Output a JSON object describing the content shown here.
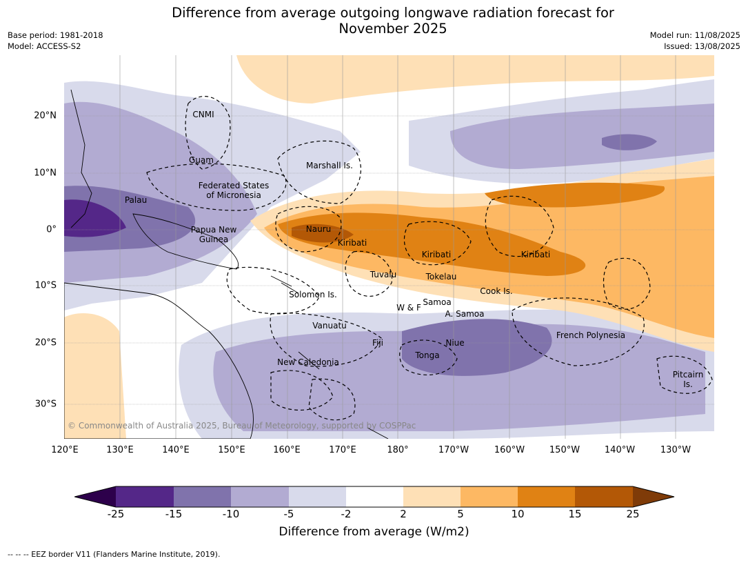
{
  "header": {
    "title_line1": "Difference from average outgoing longwave radiation forecast for",
    "title_line2": "November 2025",
    "base_period": "Base period: 1981-2018",
    "model": "Model: ACCESS-S2",
    "model_run": "Model run: 11/08/2025",
    "issued": "Issued: 13/08/2025"
  },
  "map": {
    "region_labels": {
      "cnmi": "CNMI",
      "guam": "Guam",
      "marshall": "Marshall Is.",
      "fsm1": "Federated States",
      "fsm2": "of Micronesia",
      "palau": "Palau",
      "png1": "Papua New",
      "png2": "Guinea",
      "nauru": "Nauru",
      "kiribati1": "Kiribati",
      "kiribati2": "Kiribati",
      "kiribati3": "Kiribati",
      "tuvalu": "Tuvalu",
      "tokelau": "Tokelau",
      "cook": "Cook Is.",
      "solomon": "Solomon Is.",
      "wf": "W & F",
      "samoa": "Samoa",
      "asamoa": "A. Samoa",
      "vanuatu": "Vanuatu",
      "fiji": "Fiji",
      "niue": "Niue",
      "tonga": "Tonga",
      "french_polynesia": "French Polynesia",
      "newcal": "New Caledonia",
      "pitcairn1": "Pitcairn",
      "pitcairn2": "Is."
    },
    "lat_ticks": [
      "20°N",
      "10°N",
      "0°",
      "10°S",
      "20°S",
      "30°S"
    ],
    "lon_ticks": [
      "120°E",
      "130°E",
      "140°E",
      "150°E",
      "160°E",
      "170°E",
      "180°",
      "170°W",
      "160°W",
      "150°W",
      "140°W",
      "130°W"
    ],
    "copyright": "© Commonwealth of Australia 2025, Bureau of Meteorology, supported by COSPPac"
  },
  "colorbar": {
    "ticks": [
      "-25",
      "-15",
      "-10",
      "-5",
      "-2",
      "2",
      "5",
      "10",
      "15",
      "25"
    ],
    "colors": {
      "below_min": "#2d004b",
      "c1": "#542788",
      "c2": "#8073ac",
      "c3": "#b2abd2",
      "c4": "#d8daeb",
      "c5": "#ffffff",
      "c6": "#fee0b6",
      "c7": "#fdb863",
      "c8": "#e08214",
      "c9": "#b35806",
      "above_max": "#7f3b08"
    },
    "title": "Difference from average (W/m2)"
  },
  "footer": {
    "eez_note": "--  --  -- EEZ border V11 (Flanders Marine Institute, 2019)."
  }
}
